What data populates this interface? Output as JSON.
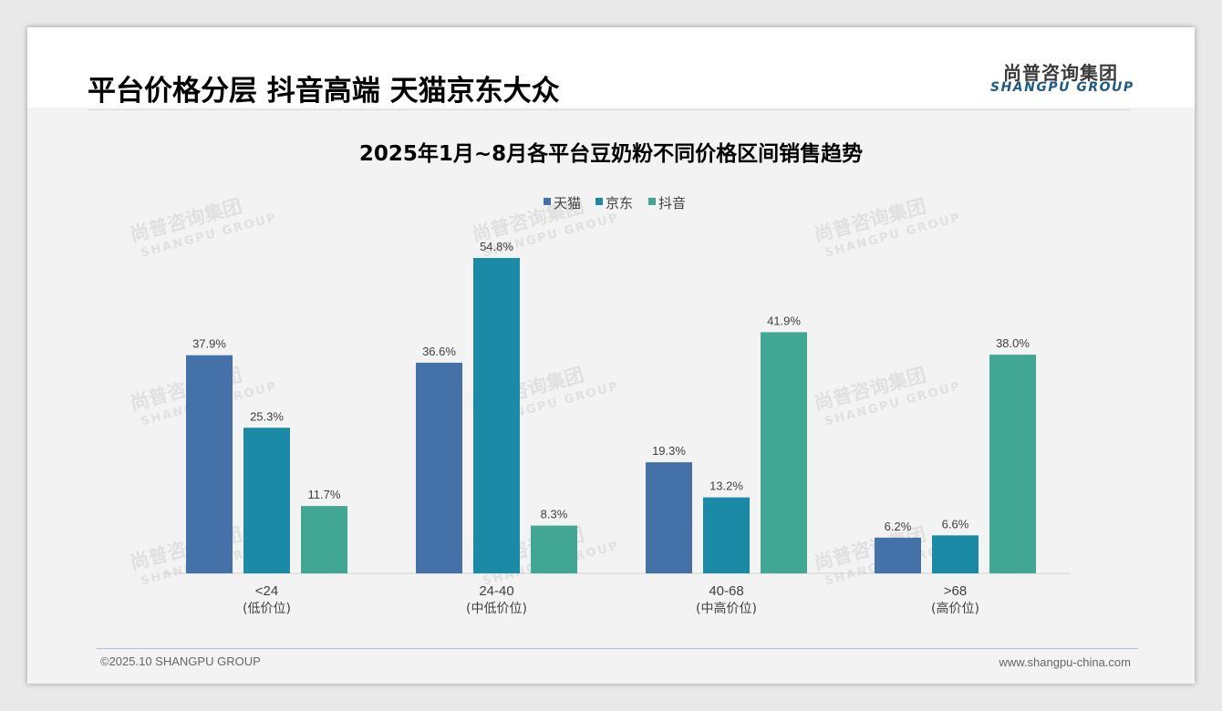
{
  "header": {
    "title": "平台价格分层 抖音高端 天猫京东大众",
    "logo_cn": "尚普咨询集团",
    "logo_en": "SHANGPU GROUP"
  },
  "footer": {
    "copyright": "©2025.10 SHANGPU GROUP",
    "website": "www.shangpu-china.com"
  },
  "watermark": {
    "cn": "尚普咨询集团",
    "en": "SHANGPU GROUP"
  },
  "chart_data": {
    "type": "bar",
    "title": "2025年1月~8月各平台豆奶粉不同价格区间销售趋势",
    "categories": [
      "<24",
      "24-40",
      "40-68",
      ">68"
    ],
    "category_sublabels": [
      "(低价位)",
      "(中低价位)",
      "(中高价位)",
      "(高价位)"
    ],
    "series": [
      {
        "name": "天猫",
        "color": "#4472a8",
        "values": [
          37.9,
          36.6,
          19.3,
          6.2
        ]
      },
      {
        "name": "京东",
        "color": "#1a8aa6",
        "values": [
          25.3,
          54.8,
          13.2,
          6.6
        ]
      },
      {
        "name": "抖音",
        "color": "#41a693",
        "values": [
          11.7,
          8.3,
          41.9,
          38.0
        ]
      }
    ],
    "value_suffix": "%",
    "ylim": [
      0,
      60
    ],
    "legend_position": "top-center",
    "grid": false
  }
}
